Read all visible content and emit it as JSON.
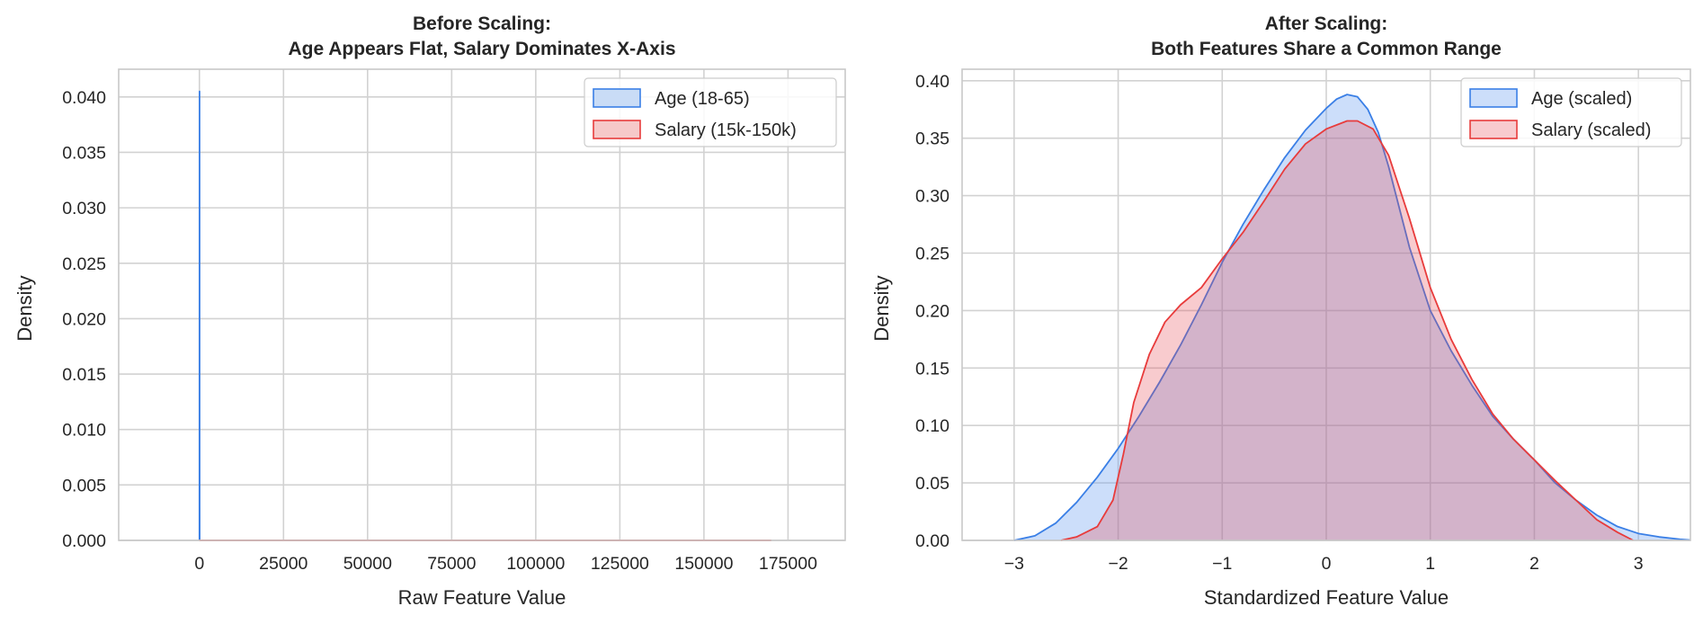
{
  "chart_data": [
    {
      "type": "area",
      "title_lines": [
        "Before Scaling:",
        "Age Appears Flat, Salary Dominates X-Axis"
      ],
      "xlabel": "Raw Feature Value",
      "ylabel": "Density",
      "xlim": [
        -24000,
        192000
      ],
      "ylim": [
        0,
        0.0425
      ],
      "xticks": [
        0,
        25000,
        50000,
        75000,
        100000,
        125000,
        150000,
        175000
      ],
      "xtick_labels": [
        "0",
        "25000",
        "50000",
        "75000",
        "100000",
        "125000",
        "150000",
        "175000"
      ],
      "yticks": [
        0,
        0.005,
        0.01,
        0.015,
        0.02,
        0.025,
        0.03,
        0.035,
        0.04
      ],
      "ytick_labels": [
        "0.000",
        "0.005",
        "0.010",
        "0.015",
        "0.020",
        "0.025",
        "0.030",
        "0.035",
        "0.040"
      ],
      "grid": true,
      "legend": "top-right",
      "series": [
        {
          "name": "Age (18-65)",
          "line_color": "#3a7fe6",
          "fill_color": "#c9dcf6",
          "points": [
            [
              5,
              0
            ],
            [
              10,
              0.0009
            ],
            [
              20,
              0.012
            ],
            [
              30,
              0.034
            ],
            [
              38,
              0.0405
            ],
            [
              45,
              0.034
            ],
            [
              55,
              0.012
            ],
            [
              65,
              0.003
            ],
            [
              75,
              0
            ]
          ]
        },
        {
          "name": "Salary (15k-150k)",
          "line_color": "#e83b3b",
          "fill_color": "#f6c9c9",
          "points": [
            [
              0,
              1e-07
            ],
            [
              40000,
              4e-07
            ],
            [
              80000,
              5e-07
            ],
            [
              120000,
              3e-07
            ],
            [
              170000,
              1e-07
            ]
          ]
        }
      ]
    },
    {
      "type": "area",
      "title_lines": [
        "After Scaling:",
        "Both Features Share a Common Range"
      ],
      "xlabel": "Standardized Feature Value",
      "ylabel": "Density",
      "xlim": [
        -3.5,
        3.5
      ],
      "ylim": [
        0,
        0.41
      ],
      "xticks": [
        -3,
        -2,
        -1,
        0,
        1,
        2,
        3
      ],
      "xtick_labels": [
        "−3",
        "−2",
        "−1",
        "0",
        "1",
        "2",
        "3"
      ],
      "yticks": [
        0,
        0.05,
        0.1,
        0.15,
        0.2,
        0.25,
        0.3,
        0.35,
        0.4
      ],
      "ytick_labels": [
        "0.00",
        "0.05",
        "0.10",
        "0.15",
        "0.20",
        "0.25",
        "0.30",
        "0.35",
        "0.40"
      ],
      "grid": true,
      "legend": "top-right",
      "series": [
        {
          "name": "Age (scaled)",
          "line_color": "#3a7fe6",
          "fill_color": "rgba(110,160,240,0.35)",
          "points": [
            [
              -3.0,
              0.0
            ],
            [
              -2.8,
              0.004
            ],
            [
              -2.6,
              0.015
            ],
            [
              -2.4,
              0.033
            ],
            [
              -2.2,
              0.055
            ],
            [
              -2.0,
              0.08
            ],
            [
              -1.8,
              0.108
            ],
            [
              -1.6,
              0.138
            ],
            [
              -1.4,
              0.17
            ],
            [
              -1.2,
              0.205
            ],
            [
              -1.0,
              0.242
            ],
            [
              -0.8,
              0.275
            ],
            [
              -0.6,
              0.305
            ],
            [
              -0.4,
              0.333
            ],
            [
              -0.2,
              0.357
            ],
            [
              0.0,
              0.376
            ],
            [
              0.1,
              0.384
            ],
            [
              0.2,
              0.388
            ],
            [
              0.3,
              0.386
            ],
            [
              0.4,
              0.375
            ],
            [
              0.5,
              0.355
            ],
            [
              0.6,
              0.325
            ],
            [
              0.7,
              0.29
            ],
            [
              0.8,
              0.255
            ],
            [
              1.0,
              0.2
            ],
            [
              1.2,
              0.165
            ],
            [
              1.4,
              0.135
            ],
            [
              1.6,
              0.108
            ],
            [
              1.8,
              0.088
            ],
            [
              2.0,
              0.07
            ],
            [
              2.2,
              0.05
            ],
            [
              2.4,
              0.035
            ],
            [
              2.6,
              0.022
            ],
            [
              2.8,
              0.012
            ],
            [
              3.0,
              0.006
            ],
            [
              3.2,
              0.003
            ],
            [
              3.4,
              0.001
            ],
            [
              3.5,
              0.0003
            ]
          ]
        },
        {
          "name": "Salary (scaled)",
          "line_color": "#e83b3b",
          "fill_color": "rgba(230,70,80,0.28)",
          "points": [
            [
              -2.55,
              0.0
            ],
            [
              -2.4,
              0.003
            ],
            [
              -2.2,
              0.012
            ],
            [
              -2.05,
              0.035
            ],
            [
              -1.95,
              0.075
            ],
            [
              -1.85,
              0.12
            ],
            [
              -1.7,
              0.162
            ],
            [
              -1.55,
              0.19
            ],
            [
              -1.4,
              0.205
            ],
            [
              -1.2,
              0.22
            ],
            [
              -1.0,
              0.245
            ],
            [
              -0.8,
              0.268
            ],
            [
              -0.6,
              0.295
            ],
            [
              -0.4,
              0.323
            ],
            [
              -0.2,
              0.345
            ],
            [
              0.0,
              0.358
            ],
            [
              0.2,
              0.365
            ],
            [
              0.3,
              0.365
            ],
            [
              0.45,
              0.358
            ],
            [
              0.6,
              0.335
            ],
            [
              0.8,
              0.28
            ],
            [
              1.0,
              0.22
            ],
            [
              1.2,
              0.175
            ],
            [
              1.4,
              0.14
            ],
            [
              1.6,
              0.11
            ],
            [
              1.8,
              0.088
            ],
            [
              2.0,
              0.07
            ],
            [
              2.2,
              0.052
            ],
            [
              2.4,
              0.035
            ],
            [
              2.6,
              0.018
            ],
            [
              2.8,
              0.007
            ],
            [
              2.95,
              0.0
            ]
          ]
        }
      ]
    }
  ]
}
